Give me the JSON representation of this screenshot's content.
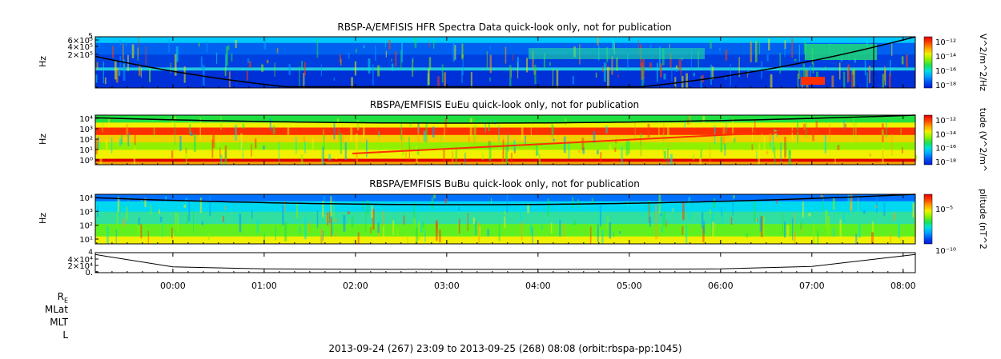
{
  "panels": [
    {
      "title": "RBSP-A/EMFISIS  HFR Spectra Data quick-look only, not for publication",
      "ylabel": "Hz",
      "yticks": [
        "6×10⁵",
        "4×10⁵",
        "2×10⁵"
      ],
      "ytop": "5",
      "colorbar_label": "V^2/m^2/Hz",
      "colorbar_ticks": [
        "10⁻¹²",
        "10⁻¹⁴",
        "10⁻¹⁶",
        "10⁻¹⁸"
      ]
    },
    {
      "title": "RBSPA/EMFISIS  EuEu quick-look only, not for publication",
      "ylabel": "Hz",
      "yticks": [
        "10⁴",
        "10³",
        "10²",
        "10¹",
        "10⁰"
      ],
      "colorbar_label": "tude (V^2/m^",
      "colorbar_ticks": [
        "10⁻¹²",
        "10⁻¹⁴",
        "10⁻¹⁶",
        "10⁻¹⁸"
      ]
    },
    {
      "title": "RBSPA/EMFISIS  BuBu quick-look only, not for publication",
      "ylabel": "Hz",
      "yticks": [
        "10⁴",
        "10³",
        "10²",
        "10¹"
      ],
      "colorbar_label": "plitude (nT^2",
      "colorbar_ticks": [
        "10⁻⁵",
        "10⁻¹⁰"
      ]
    },
    {
      "yticks": [
        "4×10⁴",
        "2×10⁴",
        "0."
      ],
      "ytop": "4"
    }
  ],
  "time_ticks": [
    "00:00",
    "01:00",
    "02:00",
    "03:00",
    "04:00",
    "05:00",
    "06:00",
    "07:00",
    "08:00"
  ],
  "ephemeris_labels": [
    "R",
    "MLat",
    "MLT",
    "L"
  ],
  "re_subscript": "E",
  "footer": "2013-09-24 (267) 23:09 to 2013-09-25 (268) 08:08 (orbit:rbspa-pp:1045)",
  "colors": {
    "colormap": [
      "#0018d8",
      "#0050f0",
      "#00a0ff",
      "#00e0e0",
      "#20e050",
      "#90f000",
      "#f0f000",
      "#ffa000",
      "#ff4000",
      "#e00000"
    ],
    "line": "#000000"
  },
  "chart_data": [
    {
      "type": "heatmap",
      "title": "RBSP-A/EMFISIS  HFR Spectra Data quick-look only, not for publication",
      "ylabel": "Hz",
      "colorbar_label": "V^2/m^2/Hz",
      "colorbar_range_log10": [
        -18,
        -12
      ],
      "x_range": [
        "2013-09-24 23:09",
        "2013-09-25 08:08"
      ],
      "scale": "log",
      "overlay_line": "cutoff curve, high at both ends, minimum near 03:30"
    },
    {
      "type": "heatmap",
      "title": "RBSPA/EMFISIS  EuEu quick-look only, not for publication",
      "ylabel": "Hz",
      "ylim_log10": [
        -0.6,
        4.2
      ],
      "colorbar_range_log10": [
        -18,
        -11
      ],
      "scale": "log"
    },
    {
      "type": "heatmap",
      "title": "RBSPA/EMFISIS  BuBu quick-look only, not for publication",
      "ylabel": "Hz",
      "ylim_log10": [
        0.3,
        4.2
      ],
      "colorbar_range_log10": [
        -12,
        -2
      ],
      "scale": "log"
    },
    {
      "type": "line",
      "yticks": [
        40000,
        20000,
        0
      ],
      "x": [
        "23:09",
        "00:00",
        "01:00",
        "02:00",
        "03:00",
        "04:00",
        "05:00",
        "06:00",
        "07:00",
        "08:08"
      ],
      "values": [
        40000,
        7000,
        1500,
        600,
        300,
        300,
        600,
        1500,
        8000,
        40000
      ]
    }
  ]
}
